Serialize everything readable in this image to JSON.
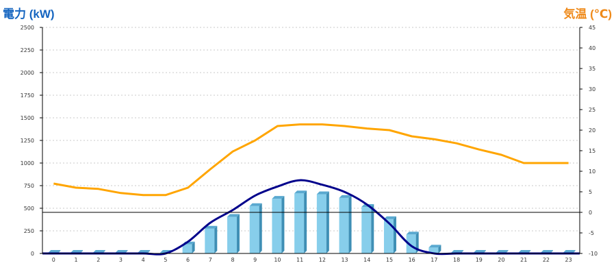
{
  "colors": {
    "left_axis_title": "#1565c0",
    "right_axis_title": "#ef8a1a",
    "bars": "#87ceeb",
    "power_line": "#00008b",
    "temp_line": "#ffa500"
  },
  "chart_data": {
    "type": "bar",
    "title": "",
    "ylabel_left": "電力 (kW)",
    "ylabel_right": "気温 (℃)",
    "categories": [
      "0",
      "1",
      "2",
      "3",
      "4",
      "5",
      "6",
      "7",
      "8",
      "9",
      "10",
      "11",
      "12",
      "13",
      "14",
      "15",
      "16",
      "17",
      "18",
      "19",
      "20",
      "21",
      "22",
      "23"
    ],
    "ylim_left": [
      0,
      2500
    ],
    "ylim_right": [
      -10,
      45
    ],
    "yticks_left": [
      0,
      250,
      500,
      750,
      1000,
      1250,
      1500,
      1750,
      2000,
      2250,
      2500
    ],
    "yticks_right": [
      -10,
      -5,
      0,
      5,
      10,
      15,
      20,
      25,
      30,
      35,
      40,
      45
    ],
    "grid": true,
    "series": [
      {
        "type": "bar",
        "axis": "left",
        "values": [
          5,
          5,
          5,
          5,
          5,
          5,
          100,
          275,
          405,
          525,
          605,
          665,
          655,
          615,
          515,
          380,
          210,
          65,
          5,
          5,
          5,
          5,
          5,
          5
        ]
      },
      {
        "type": "line",
        "axis": "left",
        "values": [
          0,
          0,
          0,
          0,
          0,
          0,
          130,
          340,
          480,
          640,
          740,
          810,
          760,
          680,
          540,
          330,
          80,
          0,
          0,
          0,
          0,
          0,
          0,
          0
        ]
      },
      {
        "type": "line",
        "axis": "right",
        "values": [
          7,
          6,
          5.7,
          4.7,
          4.2,
          4.2,
          6,
          10.5,
          14.8,
          17.5,
          21,
          21.4,
          21.4,
          21,
          20.4,
          20,
          18.5,
          17.8,
          16.8,
          15.3,
          14,
          12,
          12,
          12
        ]
      }
    ]
  }
}
